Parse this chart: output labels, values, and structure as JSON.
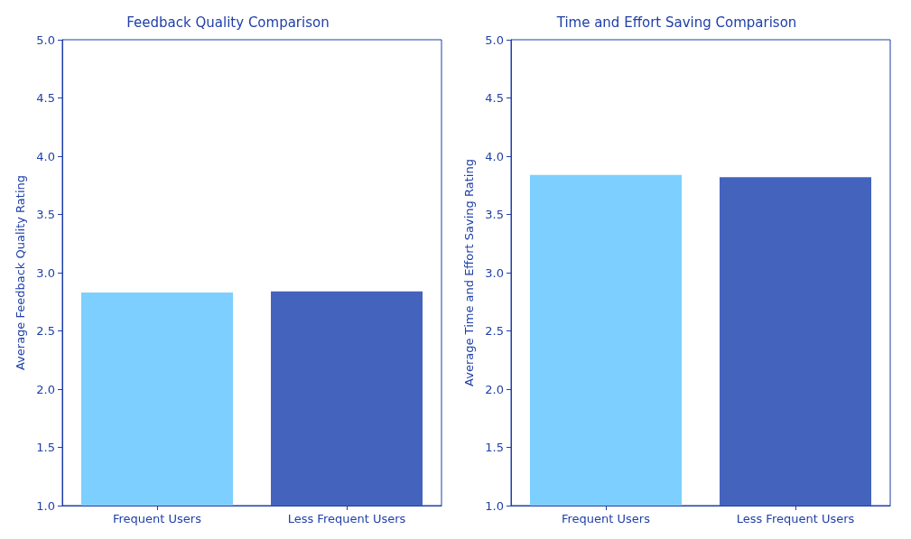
{
  "chart_data": [
    {
      "type": "bar",
      "title": "Feedback Quality Comparison",
      "ylabel": "Average Feedback Quality Rating",
      "categories": [
        "Frequent Users",
        "Less Frequent Users"
      ],
      "values": [
        2.83,
        2.84
      ],
      "colors": [
        "#7dcfff",
        "#4363bd"
      ],
      "ylim": [
        1.0,
        5.0
      ],
      "yticks": [
        {
          "value": 1,
          "label": "1.0"
        },
        {
          "value": 1.5,
          "label": "1.5"
        },
        {
          "value": 2,
          "label": "2.0"
        },
        {
          "value": 2.5,
          "label": "2.5"
        },
        {
          "value": 3,
          "label": "3.0"
        },
        {
          "value": 3.5,
          "label": "3.5"
        },
        {
          "value": 4,
          "label": "4.0"
        },
        {
          "value": 4.5,
          "label": "4.5"
        },
        {
          "value": 5,
          "label": "5.0"
        }
      ],
      "grid": false
    },
    {
      "type": "bar",
      "title": "Time and Effort Saving Comparison",
      "ylabel": "Average Time and Effort Saving Rating",
      "categories": [
        "Frequent Users",
        "Less Frequent Users"
      ],
      "values": [
        3.84,
        3.82
      ],
      "colors": [
        "#7dcfff",
        "#4363bd"
      ],
      "ylim": [
        1.0,
        5.0
      ],
      "yticks": [
        {
          "value": 1,
          "label": "1.0"
        },
        {
          "value": 1.5,
          "label": "1.5"
        },
        {
          "value": 2,
          "label": "2.0"
        },
        {
          "value": 2.5,
          "label": "2.5"
        },
        {
          "value": 3,
          "label": "3.0"
        },
        {
          "value": 3.5,
          "label": "3.5"
        },
        {
          "value": 4,
          "label": "4.0"
        },
        {
          "value": 4.5,
          "label": "4.5"
        },
        {
          "value": 5,
          "label": "5.0"
        }
      ],
      "grid": false
    }
  ]
}
